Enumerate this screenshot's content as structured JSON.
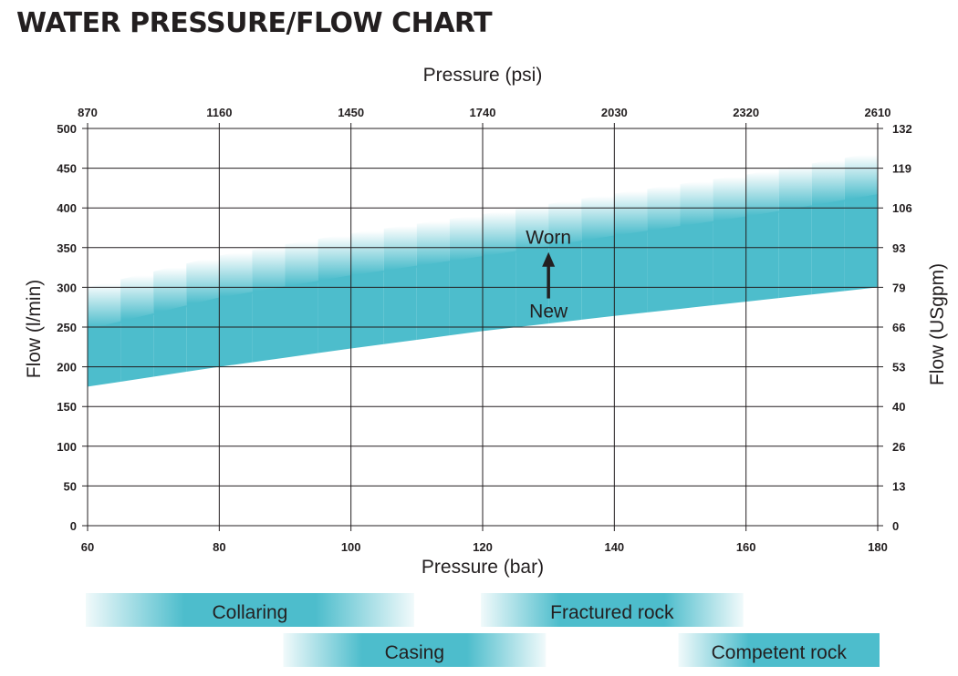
{
  "title": "WATER PRESSURE/FLOW CHART",
  "chart_data": {
    "type": "area",
    "title": "WATER PRESSURE/FLOW CHART",
    "xlabel": "Pressure (bar)",
    "ylabel": "Flow (l/min)",
    "x2label": "Pressure (psi)",
    "y2label": "Flow (USgpm)",
    "xlim": [
      60,
      180
    ],
    "ylim": [
      0,
      500
    ],
    "x_ticks": [
      "60",
      "80",
      "100",
      "120",
      "140",
      "160",
      "180"
    ],
    "y_ticks": [
      "0",
      "50",
      "100",
      "150",
      "200",
      "250",
      "300",
      "350",
      "400",
      "450",
      "500"
    ],
    "x2_ticks": [
      "870",
      "1160",
      "1450",
      "1740",
      "2030",
      "2320",
      "2610"
    ],
    "y2_ticks": [
      "0",
      "13",
      "26",
      "40",
      "53",
      "66",
      "79",
      "93",
      "106",
      "119",
      "132"
    ],
    "grid": true,
    "series": [
      {
        "name": "New",
        "x": [
          60,
          80,
          100,
          120,
          140,
          160,
          180
        ],
        "y": [
          175,
          200,
          223,
          245,
          264,
          282,
          300
        ]
      },
      {
        "name": "Worn",
        "x": [
          60,
          80,
          100,
          120,
          140,
          160,
          180
        ],
        "y": [
          300,
          340,
          368,
          392,
          418,
          442,
          470
        ]
      }
    ],
    "band_color": "#4dbdcc",
    "annotations": [
      {
        "text": "Worn",
        "x": 130,
        "y": 365
      },
      {
        "text": "New",
        "x": 130,
        "y": 270
      }
    ],
    "application_ranges": [
      {
        "name": "Collaring",
        "from": 60,
        "to": 110,
        "fade": "both"
      },
      {
        "name": "Fractured rock",
        "from": 120,
        "to": 160,
        "fade": "both"
      },
      {
        "name": "Casing",
        "from": 90,
        "to": 130,
        "fade": "both"
      },
      {
        "name": "Competent rock",
        "from": 150,
        "to": 180,
        "fade": "left"
      }
    ]
  }
}
